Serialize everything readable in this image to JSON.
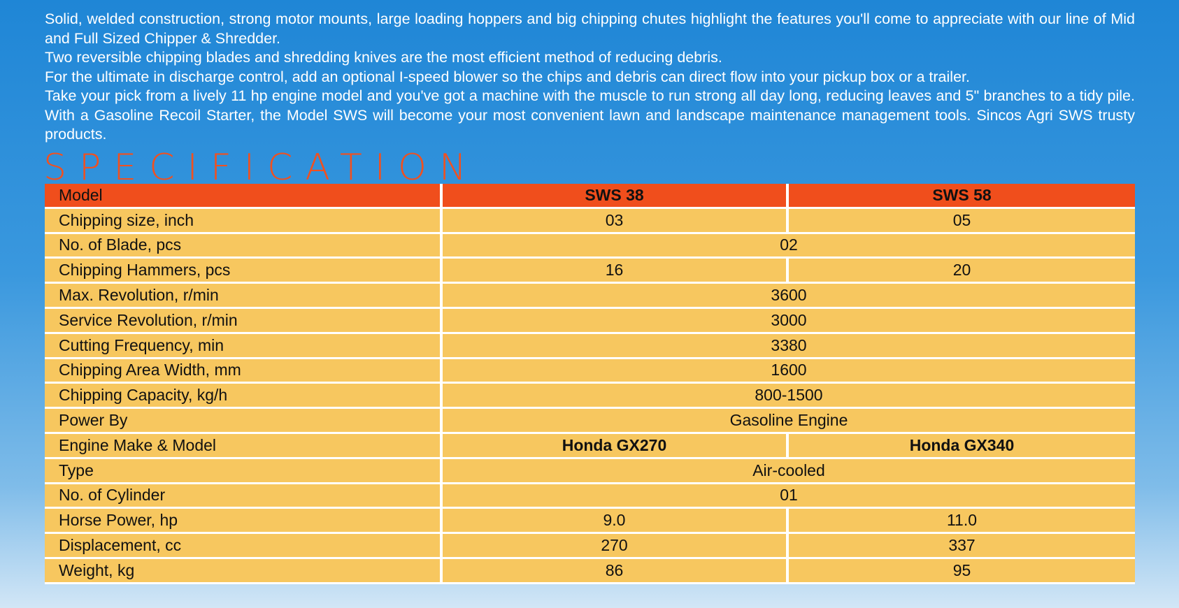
{
  "intro": {
    "paragraphs": [
      "Solid, welded construction, strong motor mounts, large loading hoppers and big chipping chutes highlight the features you'll come to appreciate with our line of Mid and Full Sized Chipper & Shredder.",
      "Two reversible chipping blades and shredding knives are the most efficient method of reducing debris.",
      "For the ultimate in discharge control, add an optional I-speed blower so the chips and debris can direct flow into your pickup box or a trailer.",
      "Take your pick from a lively 11 hp engine model and you've got a machine with the muscle to run strong all day long, reducing leaves and 5\" branches to a tidy pile. With a Gasoline Recoil Starter, the Model SWS will become your most convenient lawn and landscape maintenance management tools. Sincos Agri SWS trusty products."
    ]
  },
  "heading": "SPECIFICATION",
  "table": {
    "header": [
      "Model",
      "SWS 38",
      "SWS 58"
    ],
    "rows": [
      [
        "Chipping size, inch",
        "03",
        "05"
      ],
      [
        "No. of Blade, pcs",
        "02"
      ],
      [
        "Chipping Hammers, pcs",
        "16",
        "20"
      ],
      [
        "Max. Revolution, r/min",
        "3600"
      ],
      [
        "Service Revolution, r/min",
        "3000"
      ],
      [
        "Cutting Frequency, min",
        "3380"
      ],
      [
        "Chipping Area Width, mm",
        "1600"
      ],
      [
        "Chipping Capacity, kg/h",
        "800-1500"
      ],
      [
        "Power By",
        "Gasoline Engine"
      ],
      [
        "Engine Make & Model",
        "Honda GX270",
        "Honda GX340"
      ],
      [
        "Type",
        "Air-cooled"
      ],
      [
        "No. of Cylinder",
        "01"
      ],
      [
        "Horse Power, hp",
        "9.0",
        "11.0"
      ],
      [
        "Displacement, cc",
        "270",
        "337"
      ],
      [
        "Weight, kg",
        "86",
        "95"
      ]
    ]
  }
}
